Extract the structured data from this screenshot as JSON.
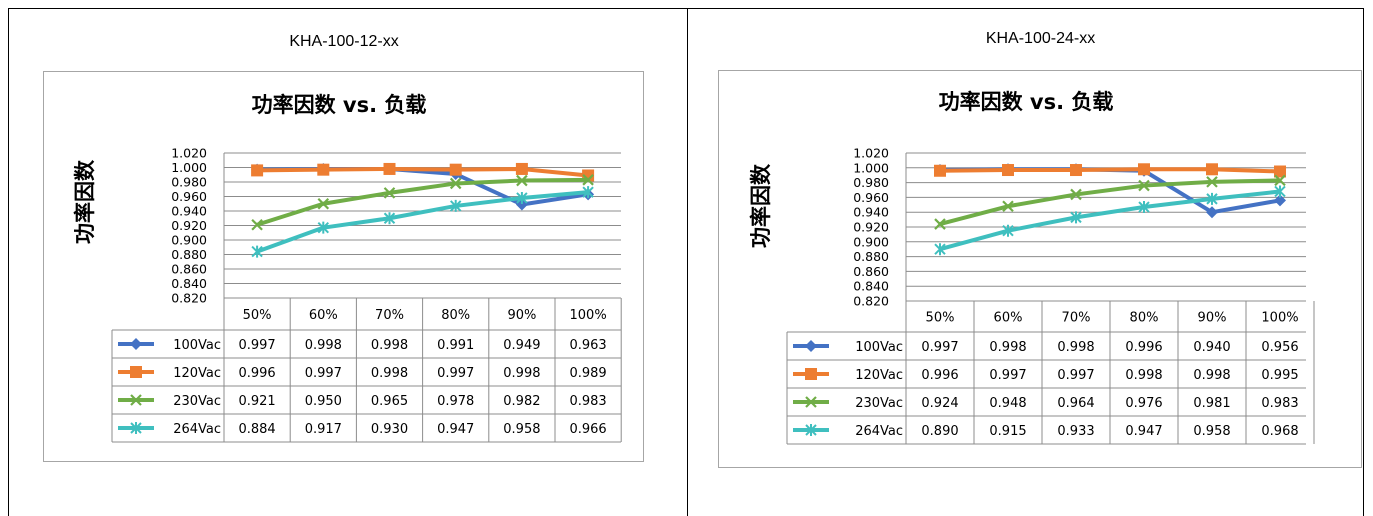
{
  "panels": [
    {
      "title": "KHA-100-12-xx"
    },
    {
      "title": "KHA-100-24-xx"
    }
  ],
  "chart_data": [
    {
      "type": "line",
      "title": "功率因数 vs. 负载",
      "xlabel": "",
      "ylabel": "功率因数",
      "ylim": [
        0.82,
        1.02
      ],
      "yticks": [
        "1.020",
        "1.000",
        "0.980",
        "0.960",
        "0.940",
        "0.920",
        "0.900",
        "0.880",
        "0.860",
        "0.840",
        "0.820"
      ],
      "grid": true,
      "legend": "data-table",
      "categories": [
        "50%",
        "60%",
        "70%",
        "80%",
        "90%",
        "100%"
      ],
      "series": [
        {
          "name": "100Vac",
          "color": "#4472c4",
          "marker": "diamond",
          "values": [
            0.997,
            0.998,
            0.998,
            0.991,
            0.949,
            0.963
          ],
          "labels": [
            "0.997",
            "0.998",
            "0.998",
            "0.991",
            "0.949",
            "0.963"
          ]
        },
        {
          "name": "120Vac",
          "color": "#ed7d31",
          "marker": "square",
          "values": [
            0.996,
            0.997,
            0.998,
            0.997,
            0.998,
            0.989
          ],
          "labels": [
            "0.996",
            "0.997",
            "0.998",
            "0.997",
            "0.998",
            "0.989"
          ]
        },
        {
          "name": "230Vac",
          "color": "#70ad47",
          "marker": "x",
          "values": [
            0.921,
            0.95,
            0.965,
            0.978,
            0.982,
            0.983
          ],
          "labels": [
            "0.921",
            "0.950",
            "0.965",
            "0.978",
            "0.982",
            "0.983"
          ]
        },
        {
          "name": "264Vac",
          "color": "#3fbfbf",
          "marker": "star",
          "values": [
            0.884,
            0.917,
            0.93,
            0.947,
            0.958,
            0.966
          ],
          "labels": [
            "0.884",
            "0.917",
            "0.930",
            "0.947",
            "0.958",
            "0.966"
          ]
        }
      ]
    },
    {
      "type": "line",
      "title": "功率因数 vs. 负载",
      "xlabel": "",
      "ylabel": "功率因数",
      "ylim": [
        0.82,
        1.02
      ],
      "yticks": [
        "1.020",
        "1.000",
        "0.980",
        "0.960",
        "0.940",
        "0.920",
        "0.900",
        "0.880",
        "0.860",
        "0.840",
        "0.820"
      ],
      "grid": true,
      "legend": "data-table",
      "categories": [
        "50%",
        "60%",
        "70%",
        "80%",
        "90%",
        "100%"
      ],
      "series": [
        {
          "name": "100Vac",
          "color": "#4472c4",
          "marker": "diamond",
          "values": [
            0.997,
            0.998,
            0.998,
            0.996,
            0.94,
            0.956
          ],
          "labels": [
            "0.997",
            "0.998",
            "0.998",
            "0.996",
            "0.940",
            "0.956"
          ]
        },
        {
          "name": "120Vac",
          "color": "#ed7d31",
          "marker": "square",
          "values": [
            0.996,
            0.997,
            0.997,
            0.998,
            0.998,
            0.995
          ],
          "labels": [
            "0.996",
            "0.997",
            "0.997",
            "0.998",
            "0.998",
            "0.995"
          ]
        },
        {
          "name": "230Vac",
          "color": "#70ad47",
          "marker": "x",
          "values": [
            0.924,
            0.948,
            0.964,
            0.976,
            0.981,
            0.983
          ],
          "labels": [
            "0.924",
            "0.948",
            "0.964",
            "0.976",
            "0.981",
            "0.983"
          ]
        },
        {
          "name": "264Vac",
          "color": "#3fbfbf",
          "marker": "star",
          "values": [
            0.89,
            0.915,
            0.933,
            0.947,
            0.958,
            0.968
          ],
          "labels": [
            "0.890",
            "0.915",
            "0.933",
            "0.947",
            "0.958",
            "0.968"
          ]
        }
      ]
    }
  ]
}
